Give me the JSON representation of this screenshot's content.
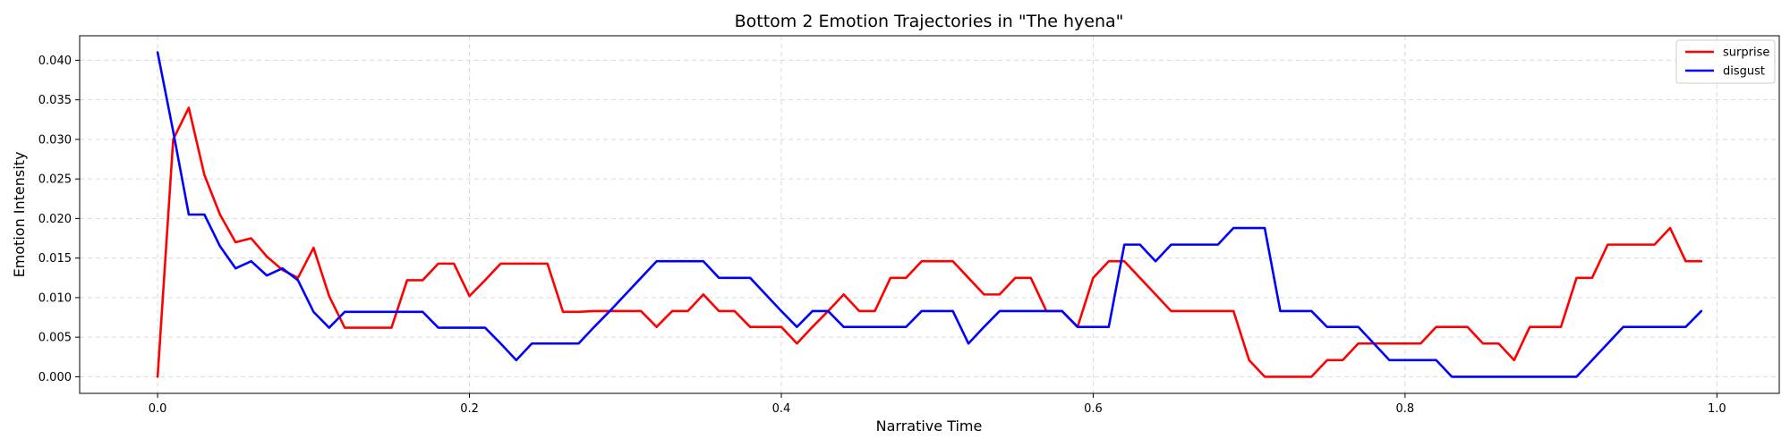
{
  "chart_data": {
    "type": "line",
    "title": "Bottom 2 Emotion Trajectories in \"The hyena\"",
    "xlabel": "Narrative Time",
    "ylabel": "Emotion Intensity",
    "xlim": [
      -0.05,
      1.04
    ],
    "ylim": [
      -0.0021,
      0.0431
    ],
    "xticks": [
      0.0,
      0.2,
      0.4,
      0.6,
      0.8,
      1.0
    ],
    "xtick_labels": [
      "0.0",
      "0.2",
      "0.4",
      "0.6",
      "0.8",
      "1.0"
    ],
    "yticks": [
      0.0,
      0.005,
      0.01,
      0.015,
      0.02,
      0.025,
      0.03,
      0.035,
      0.04
    ],
    "ytick_labels": [
      "0.000",
      "0.005",
      "0.010",
      "0.015",
      "0.020",
      "0.025",
      "0.030",
      "0.035",
      "0.040"
    ],
    "grid": true,
    "legend_position": "top-right",
    "x": [
      0.0,
      0.01,
      0.02,
      0.03,
      0.04,
      0.05,
      0.06,
      0.07,
      0.08,
      0.09,
      0.1,
      0.11,
      0.12,
      0.13,
      0.14,
      0.15,
      0.16,
      0.17,
      0.18,
      0.19,
      0.2,
      0.21,
      0.22,
      0.23,
      0.24,
      0.25,
      0.26,
      0.27,
      0.28,
      0.29,
      0.3,
      0.31,
      0.32,
      0.33,
      0.34,
      0.35,
      0.36,
      0.37,
      0.38,
      0.39,
      0.4,
      0.41,
      0.42,
      0.43,
      0.44,
      0.45,
      0.46,
      0.47,
      0.48,
      0.49,
      0.5,
      0.51,
      0.52,
      0.53,
      0.54,
      0.55,
      0.56,
      0.57,
      0.58,
      0.59,
      0.6,
      0.61,
      0.62,
      0.63,
      0.64,
      0.65,
      0.66,
      0.67,
      0.68,
      0.69,
      0.7,
      0.71,
      0.72,
      0.73,
      0.74,
      0.75,
      0.76,
      0.77,
      0.78,
      0.79,
      0.8,
      0.81,
      0.82,
      0.83,
      0.84,
      0.85,
      0.86,
      0.87,
      0.88,
      0.89,
      0.9,
      0.91,
      0.92,
      0.93,
      0.94,
      0.95,
      0.96,
      0.97,
      0.98,
      0.99
    ],
    "series": [
      {
        "name": "surprise",
        "color": "#ff0000",
        "values": [
          0.0,
          0.03,
          0.034,
          0.0255,
          0.0205,
          0.017,
          0.0175,
          0.0152,
          0.0135,
          0.0125,
          0.0163,
          0.0102,
          0.0062,
          0.0062,
          0.0062,
          0.0062,
          0.0122,
          0.0122,
          0.0143,
          0.0143,
          0.0102,
          0.0122,
          0.0143,
          0.0143,
          0.0143,
          0.0143,
          0.0082,
          0.0082,
          0.0083,
          0.0083,
          0.0083,
          0.0083,
          0.0063,
          0.0083,
          0.0083,
          0.0104,
          0.0083,
          0.0083,
          0.0063,
          0.0063,
          0.0063,
          0.0042,
          0.0063,
          0.0083,
          0.0104,
          0.0083,
          0.0083,
          0.0125,
          0.0125,
          0.0146,
          0.0146,
          0.0146,
          0.0125,
          0.0104,
          0.0104,
          0.0125,
          0.0125,
          0.0083,
          0.0083,
          0.0063,
          0.0125,
          0.0146,
          0.0146,
          0.0125,
          0.0104,
          0.0083,
          0.0083,
          0.0083,
          0.0083,
          0.0083,
          0.0021,
          0.0,
          0.0,
          0.0,
          0.0,
          0.0021,
          0.0021,
          0.0042,
          0.0042,
          0.0042,
          0.0042,
          0.0042,
          0.0063,
          0.0063,
          0.0063,
          0.0042,
          0.0042,
          0.0021,
          0.0063,
          0.0063,
          0.0063,
          0.0125,
          0.0125,
          0.0167,
          0.0167,
          0.0167,
          0.0167,
          0.0188,
          0.0146,
          0.0146
        ]
      },
      {
        "name": "disgust",
        "color": "#0000ff",
        "values": [
          0.041,
          0.031,
          0.0205,
          0.0205,
          0.0165,
          0.0137,
          0.0146,
          0.0128,
          0.0137,
          0.0122,
          0.0082,
          0.0062,
          0.0082,
          0.0082,
          0.0082,
          0.0082,
          0.0082,
          0.0082,
          0.0062,
          0.0062,
          0.0062,
          0.0062,
          0.0042,
          0.0021,
          0.0042,
          0.0042,
          0.0042,
          0.0042,
          0.0063,
          0.0083,
          0.0104,
          0.0125,
          0.0146,
          0.0146,
          0.0146,
          0.0146,
          0.0125,
          0.0125,
          0.0125,
          0.0104,
          0.0083,
          0.0063,
          0.0083,
          0.0083,
          0.0063,
          0.0063,
          0.0063,
          0.0063,
          0.0063,
          0.0083,
          0.0083,
          0.0083,
          0.0042,
          0.0063,
          0.0083,
          0.0083,
          0.0083,
          0.0083,
          0.0083,
          0.0063,
          0.0063,
          0.0063,
          0.0167,
          0.0167,
          0.0146,
          0.0167,
          0.0167,
          0.0167,
          0.0167,
          0.0188,
          0.0188,
          0.0188,
          0.0083,
          0.0083,
          0.0083,
          0.0063,
          0.0063,
          0.0063,
          0.0042,
          0.0021,
          0.0021,
          0.0021,
          0.0021,
          0.0,
          0.0,
          0.0,
          0.0,
          0.0,
          0.0,
          0.0,
          0.0,
          0.0,
          0.0021,
          0.0042,
          0.0063,
          0.0063,
          0.0063,
          0.0063,
          0.0063,
          0.0083
        ]
      }
    ]
  }
}
